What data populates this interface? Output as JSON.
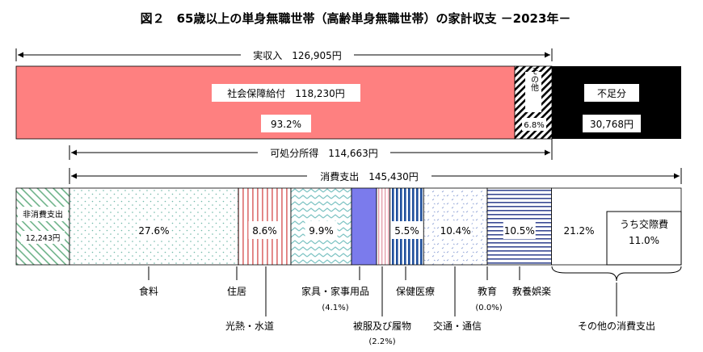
{
  "chart_data": {
    "type": "bar",
    "title": "図２　65歳以上の単身無職世帯（高齢単身無職世帯）の家計収支 －2023年－",
    "income": {
      "label": "実収入　126,905円",
      "segments": [
        {
          "key": "social",
          "label": "社会保障給付　118,230円",
          "value": 118230,
          "share": "93.2%",
          "color": "#fe8080"
        },
        {
          "key": "other",
          "label": "その他",
          "value": 8675,
          "share": "6.8%",
          "pattern": "diagonal-hatch"
        },
        {
          "key": "deficit",
          "label": "不足分",
          "value": 30768,
          "amount": "30,768円",
          "color": "#000000"
        }
      ]
    },
    "disposable": {
      "label": "可処分所得　114,663円",
      "value": 114663
    },
    "consumption_total": {
      "label": "消費支出　145,430円",
      "value": 145430
    },
    "non_consumption": {
      "label": "非消費支出",
      "amount": "12,243円",
      "value": 12243
    },
    "expenditure": [
      {
        "key": "food",
        "label": "食料",
        "share_pct": 27.6,
        "share_label": "27.6%",
        "note": "",
        "pattern": "dots"
      },
      {
        "key": "housing",
        "label": "住居",
        "share_pct": 8.6,
        "share_label": "8.6%",
        "note": "",
        "pattern": "vertical-red"
      },
      {
        "key": "utilities",
        "label": "光熱・水道",
        "share_pct": 9.9,
        "share_label": "9.9%",
        "note": "",
        "pattern": "zigzag-teal"
      },
      {
        "key": "furniture",
        "label": "家具・家事用品",
        "share_pct": 4.1,
        "share_label": "",
        "note": "(4.1%)",
        "color": "#7b7bec"
      },
      {
        "key": "clothing",
        "label": "被服及び履物",
        "share_pct": 2.2,
        "share_label": "",
        "note": "(2.2%)",
        "pattern": "vertical-pink"
      },
      {
        "key": "medical",
        "label": "保健医療",
        "share_pct": 5.5,
        "share_label": "5.5%",
        "note": "",
        "pattern": "vertical-blue"
      },
      {
        "key": "transport",
        "label": "交通・通信",
        "share_pct": 10.4,
        "share_label": "10.4%",
        "note": "",
        "pattern": "scatter-blue"
      },
      {
        "key": "education",
        "label": "教育",
        "share_pct": 0.0,
        "share_label": "",
        "note": "(0.0%)"
      },
      {
        "key": "recreation",
        "label": "教養娯楽",
        "share_pct": 10.5,
        "share_label": "10.5%",
        "note": "",
        "pattern": "horizontal-navy"
      },
      {
        "key": "other_consumption",
        "label": "その他の消費支出",
        "share_pct": 21.2,
        "share_label": "21.2%",
        "note": "",
        "sub": {
          "label": "うち交際費",
          "share_label": "11.0%",
          "share_pct": 11.0
        }
      }
    ]
  }
}
